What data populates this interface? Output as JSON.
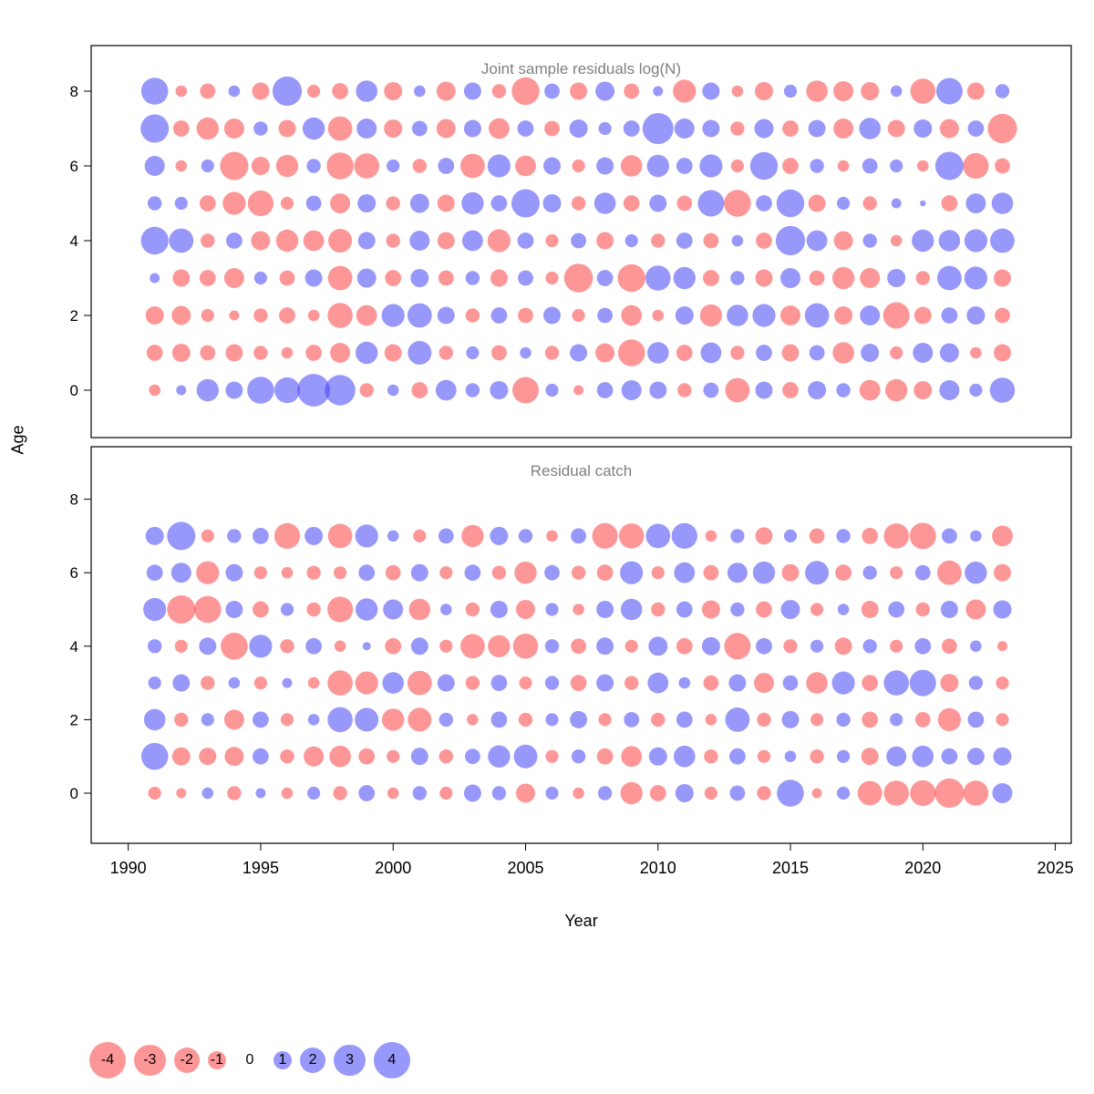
{
  "figure": {
    "background": "#ffffff"
  },
  "chart_data": {
    "type": "bubble",
    "xlabel": "Year",
    "ylabel": "Age",
    "x_ticks": [
      1990,
      1995,
      2000,
      2005,
      2010,
      2015,
      2020,
      2025
    ],
    "y_ticks": [
      0,
      2,
      4,
      6,
      8
    ],
    "xlim": [
      1988.6,
      2025.6
    ],
    "years": [
      1991,
      1992,
      1993,
      1994,
      1995,
      1996,
      1997,
      1998,
      1999,
      2000,
      2001,
      2002,
      2003,
      2004,
      2005,
      2006,
      2007,
      2008,
      2009,
      2010,
      2011,
      2012,
      2013,
      2014,
      2015,
      2016,
      2017,
      2018,
      2019,
      2020,
      2021,
      2022,
      2023
    ],
    "colors": {
      "negative": "#fb4141",
      "positive": "#4343f5",
      "opacity": 0.55,
      "title_gray": "#808080"
    },
    "legend": {
      "values": [
        -4,
        -3,
        -2,
        -1,
        0,
        1,
        2,
        3,
        4
      ]
    },
    "panels": [
      {
        "title": "Joint sample residuals log(N)",
        "ages_order": [
          8,
          7,
          6,
          5,
          4,
          3,
          2,
          1,
          0
        ],
        "series": [
          {
            "age": 8,
            "values": [
              2.2,
              -0.4,
              -0.7,
              0.4,
              -0.9,
              2.6,
              -0.5,
              -0.8,
              1.4,
              -1.0,
              0.4,
              -1.1,
              0.9,
              -0.6,
              -2.3,
              0.7,
              -0.9,
              1.1,
              -0.7,
              0.3,
              -1.6,
              0.9,
              -0.4,
              -1.0,
              0.5,
              -1.4,
              -1.2,
              -1.0,
              0.4,
              -1.9,
              2.1,
              -0.9,
              0.6
            ]
          },
          {
            "age": 7,
            "values": [
              2.4,
              -0.8,
              -1.5,
              -1.2,
              0.6,
              -0.9,
              1.5,
              -1.8,
              1.2,
              -1.0,
              0.7,
              -1.1,
              0.9,
              -1.3,
              0.8,
              -0.7,
              1.0,
              0.5,
              0.8,
              2.9,
              1.2,
              0.9,
              -0.6,
              1.1,
              -0.8,
              0.9,
              -1.2,
              1.4,
              -0.9,
              1.0,
              -1.1,
              0.8,
              -2.6
            ]
          },
          {
            "age": 6,
            "values": [
              1.2,
              -0.4,
              0.5,
              -2.4,
              -1.0,
              -1.5,
              0.6,
              -2.2,
              -1.9,
              0.5,
              -0.6,
              0.8,
              -1.8,
              1.6,
              -1.3,
              0.9,
              -0.5,
              0.9,
              -1.4,
              1.5,
              0.8,
              1.6,
              -0.5,
              2.3,
              -0.8,
              0.6,
              -0.4,
              0.7,
              0.5,
              -0.4,
              2.4,
              -2.0,
              -0.7
            ]
          },
          {
            "age": 5,
            "values": [
              0.6,
              0.5,
              -0.8,
              -1.6,
              -2.0,
              -0.5,
              0.7,
              -1.2,
              1.0,
              -0.6,
              1.1,
              -0.9,
              1.5,
              0.8,
              2.4,
              1.0,
              -0.6,
              1.4,
              -0.8,
              0.9,
              -0.7,
              2.1,
              -2.2,
              0.8,
              2.3,
              -0.9,
              0.5,
              -0.6,
              0.3,
              0.1,
              -0.8,
              1.2,
              1.4
            ]
          },
          {
            "age": 4,
            "values": [
              2.3,
              1.8,
              -0.6,
              0.8,
              -1.1,
              -1.5,
              -1.3,
              -1.7,
              0.9,
              -0.6,
              1.2,
              -0.9,
              1.3,
              -1.6,
              0.8,
              -0.5,
              0.7,
              -0.9,
              0.5,
              -0.6,
              0.8,
              -0.7,
              0.4,
              -0.8,
              2.6,
              1.3,
              -1.1,
              0.6,
              -0.4,
              1.5,
              1.4,
              1.6,
              1.8
            ]
          },
          {
            "age": 3,
            "values": [
              0.3,
              -0.9,
              -0.8,
              -1.2,
              0.5,
              -0.7,
              0.9,
              -1.8,
              1.1,
              -0.8,
              1.0,
              -0.7,
              0.6,
              -0.9,
              0.7,
              -0.5,
              -2.5,
              0.8,
              -2.3,
              1.9,
              1.5,
              -0.8,
              0.6,
              -0.9,
              1.2,
              -0.7,
              -1.5,
              -1.2,
              1.0,
              -0.6,
              1.8,
              1.6,
              -0.9
            ]
          },
          {
            "age": 2,
            "values": [
              -1.0,
              -1.1,
              -0.5,
              -0.3,
              -0.6,
              -0.8,
              -0.4,
              -1.9,
              -1.3,
              1.6,
              1.8,
              0.9,
              -0.6,
              0.8,
              -0.7,
              0.9,
              -0.5,
              0.7,
              -1.3,
              -0.4,
              1.0,
              -1.5,
              1.4,
              1.6,
              -1.2,
              1.8,
              -1.0,
              1.2,
              -2.1,
              -0.9,
              0.8,
              1.0,
              -0.7
            ]
          },
          {
            "age": 1,
            "values": [
              -0.8,
              -1.0,
              -0.7,
              -0.9,
              -0.6,
              -0.4,
              -0.8,
              -1.2,
              1.5,
              -0.9,
              1.7,
              -0.6,
              0.5,
              -0.7,
              0.4,
              -0.6,
              0.9,
              -1.1,
              -2.2,
              1.4,
              -0.8,
              1.3,
              -0.6,
              0.8,
              -0.9,
              0.7,
              -1.4,
              1.0,
              -0.5,
              1.2,
              1.1,
              -0.4,
              -0.9
            ]
          },
          {
            "age": 0,
            "values": [
              -0.4,
              0.3,
              1.5,
              0.9,
              2.2,
              2.0,
              3.2,
              2.8,
              -0.6,
              0.4,
              -0.8,
              1.3,
              0.6,
              1.0,
              -2.1,
              0.5,
              -0.3,
              0.8,
              1.2,
              0.9,
              -0.6,
              0.7,
              -1.8,
              0.9,
              -0.8,
              1.0,
              0.6,
              -1.3,
              -1.5,
              -1.0,
              1.2,
              0.5,
              1.9
            ]
          }
        ]
      },
      {
        "title": "Residual catch",
        "ages_order": [
          7,
          6,
          5,
          4,
          3,
          2,
          1,
          0
        ],
        "series": [
          {
            "age": 7,
            "values": [
              1.0,
              2.4,
              -0.5,
              0.6,
              0.8,
              -2.0,
              1.0,
              -1.8,
              1.6,
              0.4,
              -0.5,
              0.7,
              -1.5,
              1.0,
              0.6,
              -0.4,
              0.7,
              -2.0,
              -1.9,
              1.8,
              2.0,
              -0.4,
              0.6,
              -0.9,
              0.5,
              -0.7,
              0.6,
              -0.8,
              -1.9,
              -2.1,
              0.7,
              0.4,
              -1.3
            ]
          },
          {
            "age": 6,
            "values": [
              0.8,
              1.2,
              -1.6,
              0.9,
              -0.5,
              -0.4,
              -0.6,
              -0.5,
              0.8,
              -0.7,
              0.9,
              -0.5,
              0.8,
              -0.6,
              -1.5,
              0.7,
              -0.6,
              -0.8,
              1.6,
              -0.5,
              1.3,
              -0.7,
              1.2,
              1.5,
              -0.9,
              1.7,
              -0.8,
              0.6,
              -0.5,
              0.7,
              -1.8,
              1.5,
              -0.9
            ]
          },
          {
            "age": 5,
            "values": [
              1.6,
              -2.4,
              -2.2,
              0.9,
              -0.8,
              0.5,
              -0.6,
              -2.0,
              1.5,
              1.2,
              -1.4,
              0.4,
              -0.6,
              0.9,
              -1.1,
              0.5,
              -0.4,
              0.9,
              1.4,
              -0.6,
              0.8,
              -1.0,
              0.6,
              -0.8,
              1.1,
              -0.5,
              0.4,
              -0.9,
              0.8,
              -0.6,
              0.9,
              -1.2,
              1.0
            ]
          },
          {
            "age": 4,
            "values": [
              0.6,
              -0.5,
              0.9,
              -2.2,
              1.6,
              -0.6,
              0.8,
              -0.4,
              0.2,
              -0.8,
              0.9,
              -0.5,
              -1.8,
              -1.5,
              -1.9,
              0.6,
              -0.7,
              0.9,
              -0.5,
              1.1,
              -0.8,
              1.0,
              -2.1,
              0.8,
              -0.6,
              0.5,
              -0.9,
              0.6,
              -0.5,
              0.8,
              -0.7,
              0.4,
              -0.3
            ]
          },
          {
            "age": 3,
            "values": [
              0.5,
              0.9,
              -0.6,
              0.4,
              -0.5,
              0.3,
              -0.4,
              -1.9,
              -1.6,
              1.4,
              -1.8,
              0.9,
              -0.6,
              0.8,
              -0.5,
              0.6,
              -0.8,
              0.9,
              -0.6,
              1.3,
              0.4,
              -0.7,
              0.9,
              -1.2,
              0.7,
              -1.4,
              1.6,
              -0.8,
              1.9,
              2.1,
              -1.0,
              0.6,
              -0.5
            ]
          },
          {
            "age": 2,
            "values": [
              1.4,
              -0.6,
              0.5,
              -1.2,
              0.8,
              -0.5,
              0.4,
              1.9,
              1.7,
              -1.5,
              -1.7,
              0.6,
              -0.4,
              0.8,
              -0.6,
              0.5,
              0.9,
              -0.5,
              0.7,
              -0.6,
              0.8,
              -0.4,
              1.8,
              -0.6,
              0.9,
              -0.5,
              0.6,
              -0.8,
              0.5,
              -0.7,
              -1.6,
              0.8,
              -0.5
            ]
          },
          {
            "age": 1,
            "values": [
              2.2,
              -1.0,
              -0.9,
              -1.1,
              0.8,
              -0.6,
              -1.2,
              -1.4,
              -0.8,
              -0.5,
              0.9,
              -0.6,
              0.7,
              1.5,
              1.7,
              -0.5,
              0.6,
              -0.8,
              -1.3,
              1.0,
              1.4,
              -0.6,
              0.8,
              -0.5,
              0.4,
              -0.6,
              0.5,
              -0.9,
              1.2,
              1.4,
              0.8,
              0.9,
              1.0
            ]
          },
          {
            "age": 0,
            "values": [
              -0.5,
              -0.3,
              0.4,
              -0.6,
              0.3,
              -0.4,
              0.5,
              -0.6,
              0.8,
              -0.4,
              0.6,
              -0.5,
              0.9,
              0.6,
              -1.1,
              0.5,
              -0.4,
              0.6,
              -1.5,
              -0.8,
              1.0,
              -0.5,
              0.7,
              -0.6,
              2.2,
              -0.3,
              0.5,
              -1.8,
              -1.9,
              -2.0,
              -2.6,
              -1.9,
              1.2
            ]
          }
        ]
      }
    ]
  }
}
